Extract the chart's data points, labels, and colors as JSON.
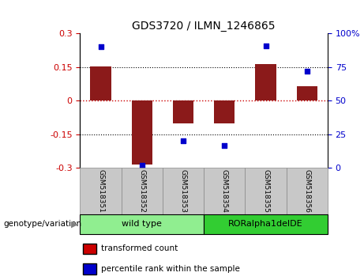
{
  "title": "GDS3720 / ILMN_1246865",
  "samples": [
    "GSM518351",
    "GSM518352",
    "GSM518353",
    "GSM518354",
    "GSM518355",
    "GSM518356"
  ],
  "bar_values": [
    0.155,
    -0.285,
    -0.1,
    -0.1,
    0.165,
    0.065
  ],
  "scatter_values": [
    90,
    2,
    20,
    17,
    91,
    72
  ],
  "ylim_left": [
    -0.3,
    0.3
  ],
  "ylim_right": [
    0,
    100
  ],
  "yticks_left": [
    -0.3,
    -0.15,
    0,
    0.15,
    0.3
  ],
  "yticks_right": [
    0,
    25,
    50,
    75,
    100
  ],
  "bar_color": "#8B1A1A",
  "scatter_color": "#0000CC",
  "zero_line_color": "#CC0000",
  "tick_label_color_left": "#CC0000",
  "tick_label_color_right": "#0000CC",
  "genotype_groups": [
    {
      "label": "wild type",
      "color_light": "#90EE90",
      "color_dark": "#32CD32",
      "start": 0,
      "end": 2
    },
    {
      "label": "RORalpha1delDE",
      "color_light": "#32CD32",
      "color_dark": "#00BB00",
      "start": 3,
      "end": 5
    }
  ],
  "legend_items": [
    {
      "label": "transformed count",
      "color": "#CC0000"
    },
    {
      "label": "percentile rank within the sample",
      "color": "#0000CC"
    }
  ],
  "genotype_label": "genotype/variation",
  "xticklabel_bg": "#C8C8C8",
  "group_colors": [
    "#90EE90",
    "#32CD32"
  ]
}
